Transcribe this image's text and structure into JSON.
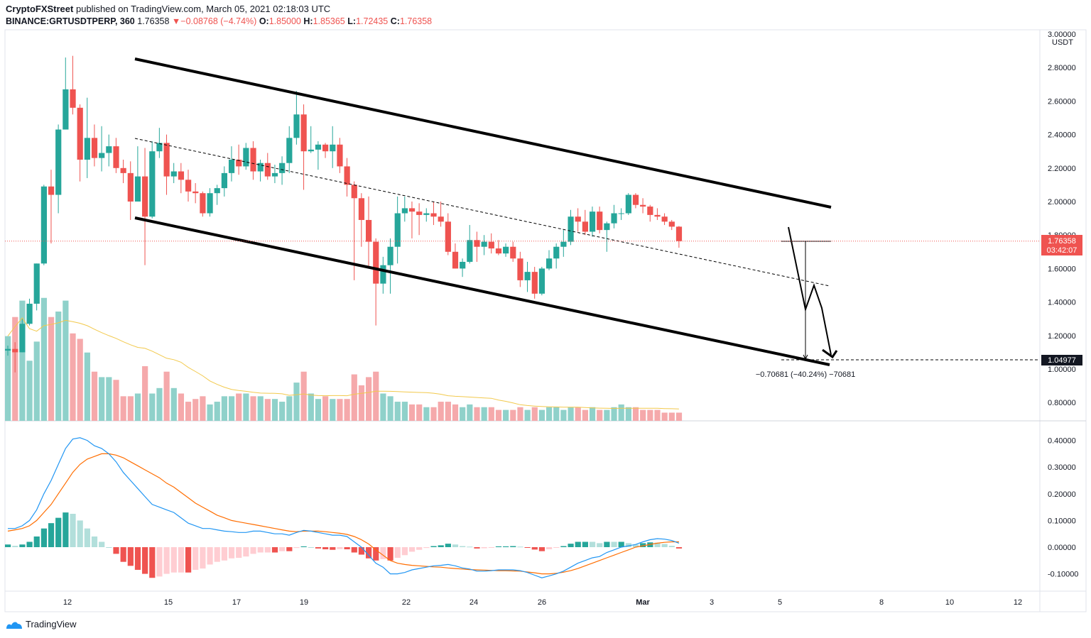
{
  "header": {
    "author": "CryptoFXStreet",
    "published_text": "published on TradingView.com, March 05, 2021 02:18:03 UTC",
    "symbol": "BINANCE:GRTUSDTPERP, 360",
    "last": "1.76358",
    "change_arrow": "▼",
    "change": "−0.08768 (−4.74%)",
    "o_label": "O:",
    "o_value": "1.85000",
    "h_label": "H:",
    "h_value": "1.85365",
    "l_label": "L:",
    "l_value": "1.72435",
    "c_label": "C:",
    "c_value": "1.76358"
  },
  "price_axis": {
    "currency": "USDT",
    "labels": [
      "3.00000",
      "2.80000",
      "2.60000",
      "2.40000",
      "2.20000",
      "2.00000",
      "1.80000",
      "1.60000",
      "1.40000",
      "1.20000",
      "1.00000",
      "0.80000"
    ]
  },
  "macd_axis": {
    "labels": [
      "0.40000",
      "0.30000",
      "0.20000",
      "0.10000",
      "0.00000",
      "-0.10000"
    ]
  },
  "time_axis": {
    "labels": [
      "12",
      "15",
      "17",
      "19",
      "22",
      "24",
      "26",
      "Mar",
      "3",
      "5",
      "8",
      "10",
      "12"
    ]
  },
  "price_tag": {
    "value": "1.76358",
    "countdown": "03:42:07"
  },
  "target_tag": {
    "value": "1.04977"
  },
  "measure_label": "−0.70681 (−40.24%) −70681",
  "footer": {
    "brand": "TradingView"
  },
  "colors": {
    "up": "#26a69a",
    "down": "#ef5350",
    "up_vol": "#8fd1ca",
    "down_vol": "#f5a9ab",
    "macd": "#2196f3",
    "signal": "#ff6d00",
    "vol_ma": "#f2c94c"
  },
  "chart_data": {
    "type": "candlestick",
    "timeframe": "360",
    "candles": [
      {
        "o": 1.11,
        "h": 1.14,
        "l": 1.08,
        "c": 1.12
      },
      {
        "o": 1.12,
        "h": 1.16,
        "l": 0.98,
        "c": 1.1
      },
      {
        "o": 1.1,
        "h": 1.3,
        "l": 1.1,
        "c": 1.27
      },
      {
        "o": 1.27,
        "h": 1.42,
        "l": 1.26,
        "c": 1.39
      },
      {
        "o": 1.39,
        "h": 1.63,
        "l": 1.35,
        "c": 1.63
      },
      {
        "o": 1.63,
        "h": 2.1,
        "l": 1.62,
        "c": 2.09
      },
      {
        "o": 2.09,
        "h": 2.19,
        "l": 1.75,
        "c": 2.04
      },
      {
        "o": 2.04,
        "h": 2.46,
        "l": 1.93,
        "c": 2.43
      },
      {
        "o": 2.43,
        "h": 2.86,
        "l": 2.43,
        "c": 2.67
      },
      {
        "o": 2.67,
        "h": 2.87,
        "l": 2.52,
        "c": 2.56
      },
      {
        "o": 2.56,
        "h": 2.58,
        "l": 2.12,
        "c": 2.25
      },
      {
        "o": 2.25,
        "h": 2.62,
        "l": 2.14,
        "c": 2.38
      },
      {
        "o": 2.38,
        "h": 2.46,
        "l": 2.21,
        "c": 2.26
      },
      {
        "o": 2.26,
        "h": 2.45,
        "l": 2.18,
        "c": 2.29
      },
      {
        "o": 2.29,
        "h": 2.4,
        "l": 2.21,
        "c": 2.33
      },
      {
        "o": 2.33,
        "h": 2.38,
        "l": 2.17,
        "c": 2.2
      },
      {
        "o": 2.2,
        "h": 2.25,
        "l": 2.11,
        "c": 2.17
      },
      {
        "o": 2.17,
        "h": 2.24,
        "l": 1.89,
        "c": 2.0
      },
      {
        "o": 2.0,
        "h": 2.33,
        "l": 2.0,
        "c": 2.15
      },
      {
        "o": 2.15,
        "h": 2.32,
        "l": 1.62,
        "c": 1.91
      },
      {
        "o": 1.91,
        "h": 2.36,
        "l": 1.9,
        "c": 2.3
      },
      {
        "o": 2.3,
        "h": 2.44,
        "l": 2.26,
        "c": 2.35
      },
      {
        "o": 2.35,
        "h": 2.4,
        "l": 2.04,
        "c": 2.15
      },
      {
        "o": 2.15,
        "h": 2.23,
        "l": 2.11,
        "c": 2.18
      },
      {
        "o": 2.18,
        "h": 2.23,
        "l": 2.05,
        "c": 2.13
      },
      {
        "o": 2.13,
        "h": 2.19,
        "l": 2.0,
        "c": 2.06
      },
      {
        "o": 2.06,
        "h": 2.11,
        "l": 1.99,
        "c": 2.05
      },
      {
        "o": 2.05,
        "h": 2.06,
        "l": 1.91,
        "c": 1.93
      },
      {
        "o": 1.93,
        "h": 2.08,
        "l": 1.91,
        "c": 2.05
      },
      {
        "o": 2.05,
        "h": 2.1,
        "l": 1.98,
        "c": 2.08
      },
      {
        "o": 2.08,
        "h": 2.21,
        "l": 2.03,
        "c": 2.17
      },
      {
        "o": 2.17,
        "h": 2.33,
        "l": 2.12,
        "c": 2.25
      },
      {
        "o": 2.25,
        "h": 2.34,
        "l": 2.16,
        "c": 2.21
      },
      {
        "o": 2.21,
        "h": 2.35,
        "l": 2.19,
        "c": 2.32
      },
      {
        "o": 2.32,
        "h": 2.36,
        "l": 2.13,
        "c": 2.18
      },
      {
        "o": 2.18,
        "h": 2.25,
        "l": 2.12,
        "c": 2.23
      },
      {
        "o": 2.23,
        "h": 2.29,
        "l": 2.13,
        "c": 2.15
      },
      {
        "o": 2.15,
        "h": 2.22,
        "l": 2.11,
        "c": 2.17
      },
      {
        "o": 2.17,
        "h": 2.27,
        "l": 2.1,
        "c": 2.23
      },
      {
        "o": 2.23,
        "h": 2.45,
        "l": 2.17,
        "c": 2.38
      },
      {
        "o": 2.38,
        "h": 2.66,
        "l": 2.34,
        "c": 2.52
      },
      {
        "o": 2.52,
        "h": 2.58,
        "l": 2.07,
        "c": 2.3
      },
      {
        "o": 2.3,
        "h": 2.45,
        "l": 2.29,
        "c": 2.31
      },
      {
        "o": 2.31,
        "h": 2.36,
        "l": 2.19,
        "c": 2.34
      },
      {
        "o": 2.34,
        "h": 2.35,
        "l": 2.26,
        "c": 2.3
      },
      {
        "o": 2.3,
        "h": 2.45,
        "l": 2.2,
        "c": 2.34
      },
      {
        "o": 2.34,
        "h": 2.38,
        "l": 2.17,
        "c": 2.21
      },
      {
        "o": 2.21,
        "h": 2.26,
        "l": 2.03,
        "c": 2.1
      },
      {
        "o": 2.1,
        "h": 2.12,
        "l": 1.53,
        "c": 2.02
      },
      {
        "o": 2.02,
        "h": 2.05,
        "l": 1.73,
        "c": 1.89
      },
      {
        "o": 1.89,
        "h": 2.03,
        "l": 1.61,
        "c": 1.76
      },
      {
        "o": 1.76,
        "h": 1.78,
        "l": 1.26,
        "c": 1.51
      },
      {
        "o": 1.51,
        "h": 1.67,
        "l": 1.45,
        "c": 1.62
      },
      {
        "o": 1.62,
        "h": 1.78,
        "l": 1.45,
        "c": 1.73
      },
      {
        "o": 1.73,
        "h": 2.03,
        "l": 1.63,
        "c": 1.93
      },
      {
        "o": 1.93,
        "h": 2.03,
        "l": 1.88,
        "c": 1.96
      },
      {
        "o": 1.96,
        "h": 2.0,
        "l": 1.78,
        "c": 1.94
      },
      {
        "o": 1.94,
        "h": 1.99,
        "l": 1.8,
        "c": 1.92
      },
      {
        "o": 1.92,
        "h": 1.96,
        "l": 1.88,
        "c": 1.93
      },
      {
        "o": 1.93,
        "h": 2.0,
        "l": 1.86,
        "c": 1.91
      },
      {
        "o": 1.91,
        "h": 2.0,
        "l": 1.85,
        "c": 1.88
      },
      {
        "o": 1.88,
        "h": 1.93,
        "l": 1.68,
        "c": 1.7
      },
      {
        "o": 1.7,
        "h": 1.75,
        "l": 1.6,
        "c": 1.6
      },
      {
        "o": 1.6,
        "h": 1.66,
        "l": 1.55,
        "c": 1.64
      },
      {
        "o": 1.64,
        "h": 1.86,
        "l": 1.63,
        "c": 1.77
      },
      {
        "o": 1.77,
        "h": 1.82,
        "l": 1.64,
        "c": 1.73
      },
      {
        "o": 1.73,
        "h": 1.8,
        "l": 1.68,
        "c": 1.76
      },
      {
        "o": 1.76,
        "h": 1.81,
        "l": 1.69,
        "c": 1.72
      },
      {
        "o": 1.72,
        "h": 1.77,
        "l": 1.68,
        "c": 1.69
      },
      {
        "o": 1.69,
        "h": 1.75,
        "l": 1.67,
        "c": 1.73
      },
      {
        "o": 1.73,
        "h": 1.76,
        "l": 1.64,
        "c": 1.66
      },
      {
        "o": 1.66,
        "h": 1.7,
        "l": 1.49,
        "c": 1.53
      },
      {
        "o": 1.53,
        "h": 1.64,
        "l": 1.46,
        "c": 1.58
      },
      {
        "o": 1.58,
        "h": 1.61,
        "l": 1.42,
        "c": 1.45
      },
      {
        "o": 1.45,
        "h": 1.61,
        "l": 1.44,
        "c": 1.6
      },
      {
        "o": 1.6,
        "h": 1.71,
        "l": 1.59,
        "c": 1.66
      },
      {
        "o": 1.66,
        "h": 1.75,
        "l": 1.6,
        "c": 1.73
      },
      {
        "o": 1.73,
        "h": 1.83,
        "l": 1.67,
        "c": 1.76
      },
      {
        "o": 1.76,
        "h": 1.95,
        "l": 1.74,
        "c": 1.91
      },
      {
        "o": 1.91,
        "h": 1.96,
        "l": 1.82,
        "c": 1.88
      },
      {
        "o": 1.88,
        "h": 1.95,
        "l": 1.8,
        "c": 1.82
      },
      {
        "o": 1.82,
        "h": 1.97,
        "l": 1.79,
        "c": 1.94
      },
      {
        "o": 1.94,
        "h": 1.97,
        "l": 1.81,
        "c": 1.83
      },
      {
        "o": 1.83,
        "h": 1.88,
        "l": 1.7,
        "c": 1.87
      },
      {
        "o": 1.87,
        "h": 1.98,
        "l": 1.84,
        "c": 1.93
      },
      {
        "o": 1.93,
        "h": 1.96,
        "l": 1.89,
        "c": 1.93
      },
      {
        "o": 1.93,
        "h": 2.05,
        "l": 1.92,
        "c": 2.04
      },
      {
        "o": 2.04,
        "h": 2.05,
        "l": 1.96,
        "c": 1.98
      },
      {
        "o": 1.98,
        "h": 2.02,
        "l": 1.93,
        "c": 1.97
      },
      {
        "o": 1.97,
        "h": 1.98,
        "l": 1.88,
        "c": 1.92
      },
      {
        "o": 1.92,
        "h": 1.96,
        "l": 1.89,
        "c": 1.91
      },
      {
        "o": 1.91,
        "h": 1.93,
        "l": 1.86,
        "c": 1.88
      },
      {
        "o": 1.88,
        "h": 1.89,
        "l": 1.83,
        "c": 1.85
      },
      {
        "o": 1.85,
        "h": 1.85365,
        "l": 1.72435,
        "c": 1.76358
      }
    ],
    "volume": [
      0.31,
      0.38,
      0.44,
      0.22,
      0.29,
      0.45,
      0.38,
      0.4,
      0.44,
      0.32,
      0.3,
      0.25,
      0.18,
      0.16,
      0.16,
      0.15,
      0.09,
      0.09,
      0.1,
      0.2,
      0.1,
      0.12,
      0.18,
      0.12,
      0.1,
      0.07,
      0.08,
      0.09,
      0.06,
      0.07,
      0.09,
      0.09,
      0.1,
      0.1,
      0.09,
      0.09,
      0.08,
      0.08,
      0.07,
      0.09,
      0.14,
      0.18,
      0.1,
      0.08,
      0.09,
      0.08,
      0.08,
      0.08,
      0.17,
      0.13,
      0.16,
      0.18,
      0.1,
      0.09,
      0.07,
      0.07,
      0.06,
      0.06,
      0.05,
      0.05,
      0.07,
      0.07,
      0.06,
      0.05,
      0.06,
      0.05,
      0.05,
      0.05,
      0.04,
      0.04,
      0.04,
      0.05,
      0.04,
      0.05,
      0.04,
      0.05,
      0.05,
      0.04,
      0.05,
      0.05,
      0.04,
      0.05,
      0.04,
      0.04,
      0.05,
      0.06,
      0.05,
      0.05,
      0.04,
      0.04,
      0.04,
      0.03,
      0.03,
      0.03
    ],
    "macd_line": [
      0.07,
      0.07,
      0.08,
      0.1,
      0.14,
      0.2,
      0.25,
      0.31,
      0.37,
      0.405,
      0.41,
      0.4,
      0.38,
      0.37,
      0.35,
      0.32,
      0.28,
      0.25,
      0.22,
      0.19,
      0.16,
      0.15,
      0.14,
      0.13,
      0.11,
      0.09,
      0.08,
      0.07,
      0.07,
      0.065,
      0.06,
      0.058,
      0.055,
      0.055,
      0.06,
      0.06,
      0.055,
      0.05,
      0.05,
      0.045,
      0.055,
      0.063,
      0.06,
      0.055,
      0.05,
      0.045,
      0.045,
      0.04,
      0.02,
      0.0,
      -0.03,
      -0.06,
      -0.075,
      -0.1,
      -0.1,
      -0.095,
      -0.085,
      -0.08,
      -0.075,
      -0.07,
      -0.068,
      -0.065,
      -0.07,
      -0.078,
      -0.082,
      -0.09,
      -0.09,
      -0.088,
      -0.085,
      -0.085,
      -0.085,
      -0.088,
      -0.095,
      -0.105,
      -0.115,
      -0.108,
      -0.1,
      -0.09,
      -0.075,
      -0.06,
      -0.05,
      -0.04,
      -0.035,
      -0.02,
      -0.01,
      0.0,
      0.005,
      0.01,
      0.02,
      0.028,
      0.032,
      0.03,
      0.025,
      0.015
    ],
    "signal_line": [
      0.06,
      0.065,
      0.07,
      0.08,
      0.1,
      0.13,
      0.16,
      0.2,
      0.24,
      0.28,
      0.31,
      0.33,
      0.34,
      0.35,
      0.35,
      0.345,
      0.335,
      0.32,
      0.305,
      0.29,
      0.275,
      0.26,
      0.24,
      0.225,
      0.205,
      0.185,
      0.165,
      0.15,
      0.135,
      0.12,
      0.11,
      0.1,
      0.095,
      0.09,
      0.085,
      0.08,
      0.075,
      0.07,
      0.065,
      0.06,
      0.058,
      0.06,
      0.06,
      0.06,
      0.058,
      0.055,
      0.052,
      0.048,
      0.04,
      0.028,
      0.012,
      -0.01,
      -0.03,
      -0.05,
      -0.06,
      -0.065,
      -0.068,
      -0.07,
      -0.072,
      -0.074,
      -0.075,
      -0.078,
      -0.08,
      -0.082,
      -0.084,
      -0.085,
      -0.086,
      -0.087,
      -0.088,
      -0.088,
      -0.089,
      -0.09,
      -0.093,
      -0.096,
      -0.1,
      -0.1,
      -0.098,
      -0.094,
      -0.088,
      -0.08,
      -0.07,
      -0.06,
      -0.05,
      -0.04,
      -0.03,
      -0.02,
      -0.01,
      0.0,
      0.005,
      0.01,
      0.015,
      0.018,
      0.02,
      0.02
    ]
  }
}
